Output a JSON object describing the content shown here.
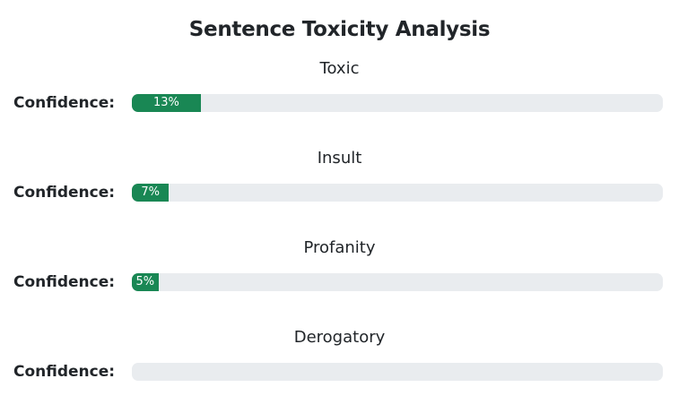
{
  "title": "Sentence Toxicity Analysis",
  "confidence_label": "Confidence:",
  "colors": {
    "fill": "#198754",
    "track": "#e9ecef"
  },
  "categories": [
    {
      "label": "Toxic",
      "value": 13,
      "value_text": "13%"
    },
    {
      "label": "Insult",
      "value": 7,
      "value_text": "7%"
    },
    {
      "label": "Profanity",
      "value": 5,
      "value_text": "5%"
    },
    {
      "label": "Derogatory",
      "value": 0,
      "value_text": ""
    }
  ]
}
